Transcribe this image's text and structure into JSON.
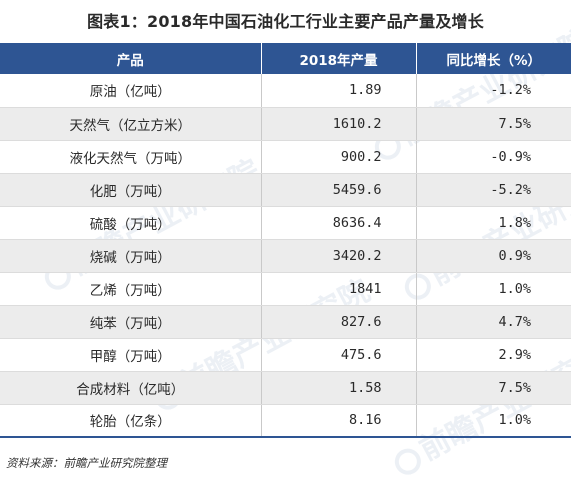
{
  "title": "图表1：2018年中国石油化工行业主要产品产量及增长",
  "table": {
    "headers": [
      "产品",
      "2018年产量",
      "同比增长（%）"
    ],
    "rows": [
      {
        "product": "原油（亿吨）",
        "output": "1.89",
        "growth": "-1.2%"
      },
      {
        "product": "天然气（亿立方米）",
        "output": "1610.2",
        "growth": "7.5%"
      },
      {
        "product": "液化天然气（万吨）",
        "output": "900.2",
        "growth": "-0.9%"
      },
      {
        "product": "化肥（万吨）",
        "output": "5459.6",
        "growth": "-5.2%"
      },
      {
        "product": "硫酸（万吨）",
        "output": "8636.4",
        "growth": "1.8%"
      },
      {
        "product": "烧碱（万吨）",
        "output": "3420.2",
        "growth": "0.9%"
      },
      {
        "product": "乙烯（万吨）",
        "output": "1841",
        "growth": "1.0%"
      },
      {
        "product": "纯苯（万吨）",
        "output": "827.6",
        "growth": "4.7%"
      },
      {
        "product": "甲醇（万吨）",
        "output": "475.6",
        "growth": "2.9%"
      },
      {
        "product": "合成材料（亿吨）",
        "output": "1.58",
        "growth": "7.5%"
      },
      {
        "product": "轮胎（亿条）",
        "output": "8.16",
        "growth": "1.0%"
      }
    ]
  },
  "source": "资料来源：前瞻产业研究院整理",
  "watermark": "前瞻产业研究院",
  "colors": {
    "header_bg": "#2e5593",
    "stripe": "#ececec"
  }
}
